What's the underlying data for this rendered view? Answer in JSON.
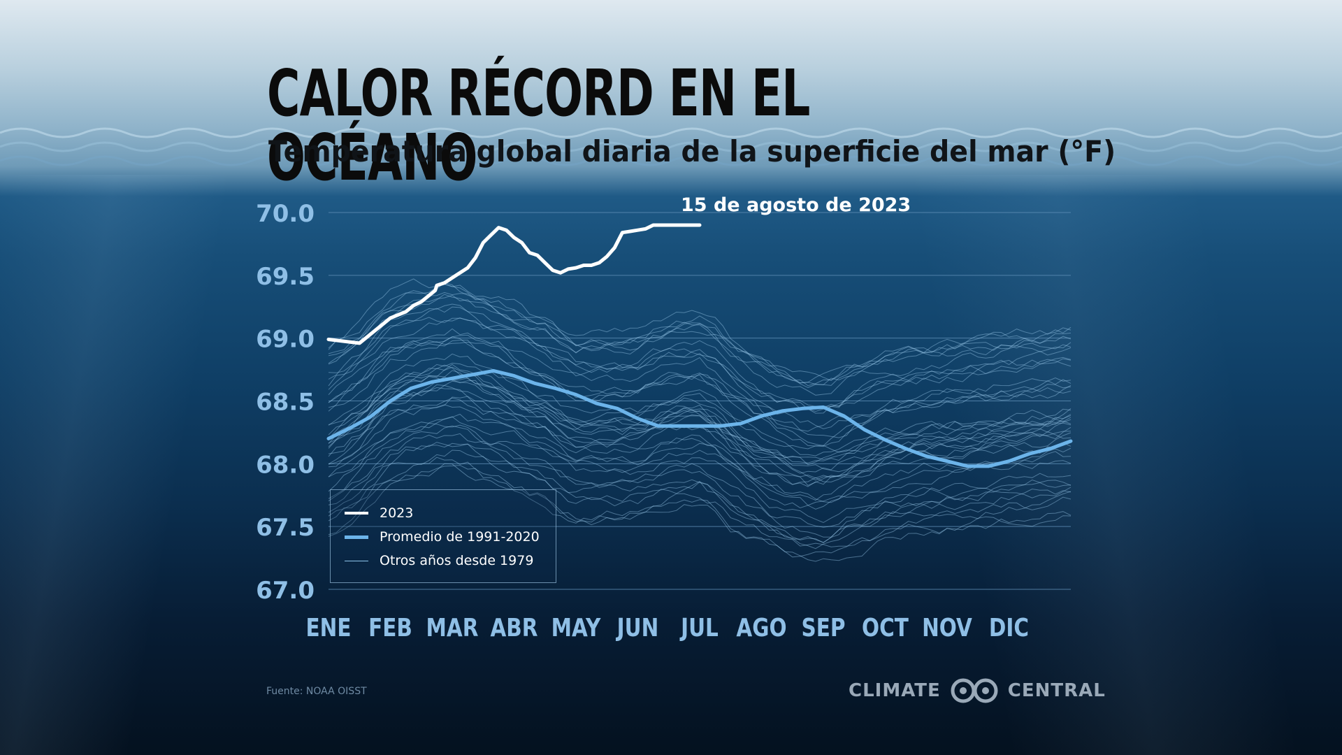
{
  "title": "CALOR RÉCORD EN EL OCÉANO",
  "subtitle": "Temperatura global diaria de la superficie del mar (°F)",
  "annotation": "15 de agosto de 2023",
  "legend": [
    {
      "label": "2023",
      "color": "#ffffff"
    },
    {
      "label": "Promedio de 1991-2020",
      "color": "#6cb4ea"
    },
    {
      "label": "Otros años desde 1979",
      "color": "#8ec3ea"
    }
  ],
  "source": "Fuente: NOAA OISST",
  "brand": {
    "left": "CLIMATE",
    "right": "CENTRAL"
  },
  "colors": {
    "record": "#ffffff",
    "average": "#6cb4ea",
    "others": "#9cc9ea",
    "axis_text": "#8fbfe6",
    "grid": "#5f8fb7"
  },
  "chart_data": {
    "type": "line",
    "title": "CALOR RÉCORD EN EL OCÉANO",
    "subtitle": "Temperatura global diaria de la superficie del mar (°F)",
    "categories": [
      "ENE",
      "FEB",
      "MAR",
      "ABR",
      "MAY",
      "JUN",
      "JUL",
      "AGO",
      "SEP",
      "OCT",
      "NOV",
      "DIC"
    ],
    "y_ticks": [
      "70.0",
      "69.5",
      "69.0",
      "68.5",
      "68.0",
      "67.5",
      "67.0"
    ],
    "ylim": [
      67.0,
      70.0
    ],
    "grid": true,
    "legend_position": "bottom-left",
    "series": [
      {
        "name": "2023",
        "x": [
          1,
          3,
          4,
          5,
          6,
          6.5,
          7,
          7.4,
          7.9,
          8,
          8.5,
          9,
          10,
          10.5,
          11,
          11.5,
          12,
          12.5,
          13,
          13.5,
          14,
          14.5,
          15,
          15.5,
          16,
          16.5,
          17,
          17.5,
          18,
          18.5,
          19,
          19.5,
          20,
          20.5,
          21,
          21.5,
          22,
          22.5,
          23,
          23.5,
          24,
          25
        ],
        "values": [
          68.99,
          68.96,
          69.06,
          69.16,
          69.21,
          69.26,
          69.29,
          69.33,
          69.38,
          69.42,
          69.44,
          69.48,
          69.56,
          69.64,
          69.76,
          69.82,
          69.88,
          69.86,
          69.8,
          69.76,
          69.68,
          69.66,
          69.6,
          69.54,
          69.52,
          69.55,
          69.56,
          69.58,
          69.58,
          69.6,
          69.65,
          69.72,
          69.84,
          69.85,
          69.86,
          69.87,
          69.9,
          69.9,
          69.9,
          69.9,
          69.9,
          69.9
        ]
      },
      {
        "name": "Promedio de 1991-2020",
        "x": [
          1,
          2,
          3,
          4,
          5,
          6,
          7,
          8,
          9,
          10,
          11,
          12,
          13,
          14,
          15,
          16,
          17,
          18,
          19,
          20,
          21,
          22,
          23,
          24,
          25,
          26,
          27,
          28,
          29,
          30,
          31,
          32,
          33,
          34,
          35,
          36,
          37
        ],
        "values": [
          68.2,
          68.28,
          68.37,
          68.5,
          68.6,
          68.65,
          68.68,
          68.71,
          68.74,
          68.7,
          68.64,
          68.6,
          68.55,
          68.48,
          68.44,
          68.36,
          68.3,
          68.3,
          68.3,
          68.3,
          68.32,
          68.38,
          68.42,
          68.44,
          68.45,
          68.38,
          68.27,
          68.19,
          68.12,
          68.06,
          68.02,
          67.98,
          67.98,
          68.02,
          68.08,
          68.12,
          68.18
        ]
      }
    ]
  }
}
